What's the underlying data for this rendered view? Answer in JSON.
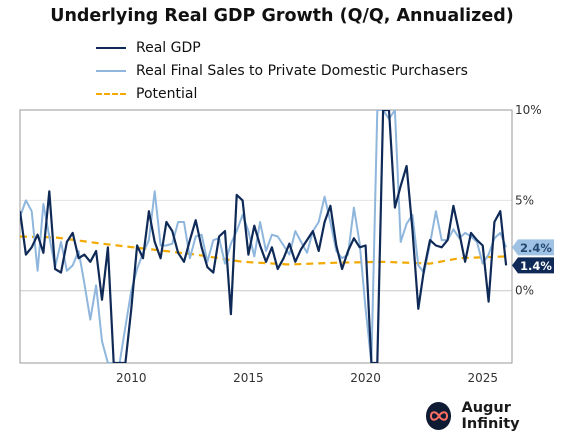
{
  "chart_data": {
    "type": "line",
    "title": "Underlying Real GDP Growth (Q/Q, Annualized)",
    "xlabel": "",
    "ylabel": "",
    "x_ticks": [
      "2010",
      "2015",
      "2020",
      "2025"
    ],
    "y_ticks": [
      "10%",
      "5%",
      "0%"
    ],
    "xlim": [
      "2005-Q2",
      "2026-Q2"
    ],
    "ylim": [
      -4,
      10
    ],
    "grid": "horizontal",
    "legend_position": "top-left",
    "series": [
      {
        "name": "Real GDP",
        "color": "#0f2a57",
        "end_label": "1.4%",
        "points": [
          [
            "2005-Q2",
            4.4
          ],
          [
            "2005-Q3",
            2.0
          ],
          [
            "2005-Q4",
            2.4
          ],
          [
            "2006-Q1",
            3.1
          ],
          [
            "2006-Q2",
            2.1
          ],
          [
            "2006-Q3",
            5.5
          ],
          [
            "2006-Q4",
            1.2
          ],
          [
            "2007-Q1",
            1.0
          ],
          [
            "2007-Q2",
            2.7
          ],
          [
            "2007-Q3",
            3.2
          ],
          [
            "2007-Q4",
            1.8
          ],
          [
            "2008-Q1",
            2.0
          ],
          [
            "2008-Q2",
            1.6
          ],
          [
            "2008-Q3",
            2.2
          ],
          [
            "2008-Q4",
            -0.5
          ],
          [
            "2009-Q1",
            2.4
          ],
          [
            "2009-Q2",
            -4.0
          ],
          [
            "2009-Q3",
            -4.0
          ],
          [
            "2009-Q4",
            -4.0
          ],
          [
            "2010-Q1",
            -1.0
          ],
          [
            "2010-Q2",
            2.5
          ],
          [
            "2010-Q3",
            1.8
          ],
          [
            "2010-Q4",
            4.4
          ],
          [
            "2011-Q1",
            2.7
          ],
          [
            "2011-Q2",
            1.8
          ],
          [
            "2011-Q3",
            3.8
          ],
          [
            "2011-Q4",
            3.3
          ],
          [
            "2012-Q1",
            2.1
          ],
          [
            "2012-Q2",
            1.6
          ],
          [
            "2012-Q3",
            2.8
          ],
          [
            "2012-Q4",
            3.9
          ],
          [
            "2013-Q1",
            2.4
          ],
          [
            "2013-Q2",
            1.3
          ],
          [
            "2013-Q3",
            1.0
          ],
          [
            "2013-Q4",
            3.0
          ],
          [
            "2014-Q1",
            3.3
          ],
          [
            "2014-Q2",
            -1.3
          ],
          [
            "2014-Q3",
            5.3
          ],
          [
            "2014-Q4",
            5.0
          ],
          [
            "2015-Q1",
            2.0
          ],
          [
            "2015-Q2",
            3.6
          ],
          [
            "2015-Q3",
            2.5
          ],
          [
            "2015-Q4",
            1.6
          ],
          [
            "2016-Q1",
            2.4
          ],
          [
            "2016-Q2",
            1.2
          ],
          [
            "2016-Q3",
            1.8
          ],
          [
            "2016-Q4",
            2.6
          ],
          [
            "2017-Q1",
            1.6
          ],
          [
            "2017-Q2",
            2.3
          ],
          [
            "2017-Q3",
            2.8
          ],
          [
            "2017-Q4",
            3.3
          ],
          [
            "2018-Q1",
            2.2
          ],
          [
            "2018-Q2",
            3.8
          ],
          [
            "2018-Q3",
            4.7
          ],
          [
            "2018-Q4",
            2.5
          ],
          [
            "2019-Q1",
            1.2
          ],
          [
            "2019-Q2",
            2.2
          ],
          [
            "2019-Q3",
            2.9
          ],
          [
            "2019-Q4",
            2.4
          ],
          [
            "2020-Q1",
            2.5
          ],
          [
            "2020-Q2",
            -4.0
          ],
          [
            "2020-Q3",
            -4.0
          ],
          [
            "2020-Q4",
            10.0
          ],
          [
            "2021-Q1",
            10.0
          ],
          [
            "2021-Q2",
            4.6
          ],
          [
            "2021-Q3",
            5.8
          ],
          [
            "2021-Q4",
            6.9
          ],
          [
            "2022-Q1",
            3.4
          ],
          [
            "2022-Q2",
            -1.0
          ],
          [
            "2022-Q3",
            1.2
          ],
          [
            "2022-Q4",
            2.8
          ],
          [
            "2023-Q1",
            2.5
          ],
          [
            "2023-Q2",
            2.4
          ],
          [
            "2023-Q3",
            2.8
          ],
          [
            "2023-Q4",
            4.7
          ],
          [
            "2024-Q1",
            3.2
          ],
          [
            "2024-Q2",
            1.6
          ],
          [
            "2024-Q3",
            3.2
          ],
          [
            "2024-Q4",
            2.8
          ],
          [
            "2025-Q1",
            2.5
          ],
          [
            "2025-Q2",
            -0.6
          ],
          [
            "2025-Q3",
            3.8
          ],
          [
            "2025-Q4",
            4.4
          ],
          [
            "2026-Q1",
            1.4
          ]
        ]
      },
      {
        "name": "Real Final Sales to Private Domestic Purchasers",
        "color": "#8fb6dc",
        "end_label": "2.4%",
        "points": [
          [
            "2005-Q2",
            4.1
          ],
          [
            "2005-Q3",
            5.0
          ],
          [
            "2005-Q4",
            4.4
          ],
          [
            "2006-Q1",
            1.1
          ],
          [
            "2006-Q2",
            4.8
          ],
          [
            "2006-Q3",
            3.0
          ],
          [
            "2006-Q4",
            1.3
          ],
          [
            "2007-Q1",
            2.7
          ],
          [
            "2007-Q2",
            1.1
          ],
          [
            "2007-Q3",
            1.4
          ],
          [
            "2007-Q4",
            2.2
          ],
          [
            "2008-Q1",
            0.4
          ],
          [
            "2008-Q2",
            -1.6
          ],
          [
            "2008-Q3",
            0.3
          ],
          [
            "2008-Q4",
            -2.8
          ],
          [
            "2009-Q1",
            -4.0
          ],
          [
            "2009-Q2",
            -4.0
          ],
          [
            "2009-Q3",
            -4.0
          ],
          [
            "2009-Q4",
            -2.0
          ],
          [
            "2010-Q1",
            0.0
          ],
          [
            "2010-Q2",
            1.2
          ],
          [
            "2010-Q3",
            2.1
          ],
          [
            "2010-Q4",
            2.8
          ],
          [
            "2011-Q1",
            5.5
          ],
          [
            "2011-Q2",
            2.5
          ],
          [
            "2011-Q3",
            2.5
          ],
          [
            "2011-Q4",
            2.6
          ],
          [
            "2012-Q1",
            3.8
          ],
          [
            "2012-Q2",
            3.8
          ],
          [
            "2012-Q3",
            1.8
          ],
          [
            "2012-Q4",
            3.0
          ],
          [
            "2013-Q1",
            3.1
          ],
          [
            "2013-Q2",
            1.6
          ],
          [
            "2013-Q3",
            2.8
          ],
          [
            "2013-Q4",
            2.9
          ],
          [
            "2014-Q1",
            1.5
          ],
          [
            "2014-Q2",
            2.6
          ],
          [
            "2014-Q3",
            3.3
          ],
          [
            "2014-Q4",
            4.2
          ],
          [
            "2015-Q1",
            3.3
          ],
          [
            "2015-Q2",
            1.9
          ],
          [
            "2015-Q3",
            3.8
          ],
          [
            "2015-Q4",
            2.2
          ],
          [
            "2016-Q1",
            3.1
          ],
          [
            "2016-Q2",
            3.0
          ],
          [
            "2016-Q3",
            2.5
          ],
          [
            "2016-Q4",
            2.0
          ],
          [
            "2017-Q1",
            3.3
          ],
          [
            "2017-Q2",
            2.7
          ],
          [
            "2017-Q3",
            2.1
          ],
          [
            "2017-Q4",
            3.3
          ],
          [
            "2018-Q1",
            3.8
          ],
          [
            "2018-Q2",
            5.2
          ],
          [
            "2018-Q3",
            3.8
          ],
          [
            "2018-Q4",
            2.2
          ],
          [
            "2019-Q1",
            1.8
          ],
          [
            "2019-Q2",
            2.0
          ],
          [
            "2019-Q3",
            4.6
          ],
          [
            "2019-Q4",
            2.6
          ],
          [
            "2020-Q1",
            -1.0
          ],
          [
            "2020-Q2",
            -4.0
          ],
          [
            "2020-Q3",
            10.0
          ],
          [
            "2020-Q4",
            10.0
          ],
          [
            "2021-Q1",
            9.5
          ],
          [
            "2021-Q2",
            10.0
          ],
          [
            "2021-Q3",
            2.7
          ],
          [
            "2021-Q4",
            3.7
          ],
          [
            "2022-Q1",
            4.2
          ],
          [
            "2022-Q2",
            1.4
          ],
          [
            "2022-Q3",
            1.0
          ],
          [
            "2022-Q4",
            2.6
          ],
          [
            "2023-Q1",
            4.4
          ],
          [
            "2023-Q2",
            2.8
          ],
          [
            "2023-Q3",
            2.8
          ],
          [
            "2023-Q4",
            3.4
          ],
          [
            "2024-Q1",
            2.9
          ],
          [
            "2024-Q2",
            3.2
          ],
          [
            "2024-Q3",
            3.0
          ],
          [
            "2024-Q4",
            2.7
          ],
          [
            "2025-Q1",
            1.5
          ],
          [
            "2025-Q2",
            2.0
          ],
          [
            "2025-Q3",
            2.9
          ],
          [
            "2025-Q4",
            3.2
          ],
          [
            "2026-Q1",
            2.4
          ]
        ]
      },
      {
        "name": "Potential",
        "color": "#f2a900",
        "dashed": true,
        "points": [
          [
            "2005-Q2",
            3.0
          ],
          [
            "2006-Q4",
            2.95
          ],
          [
            "2008-Q4",
            2.6
          ],
          [
            "2010-Q4",
            2.3
          ],
          [
            "2012-Q4",
            2.0
          ],
          [
            "2014-Q4",
            1.6
          ],
          [
            "2016-Q4",
            1.45
          ],
          [
            "2018-Q4",
            1.55
          ],
          [
            "2020-Q4",
            1.6
          ],
          [
            "2022-Q4",
            1.5
          ],
          [
            "2024-Q1",
            1.8
          ],
          [
            "2026-Q1",
            1.9
          ]
        ]
      }
    ]
  },
  "brand": {
    "name": "Augur Infinity"
  }
}
